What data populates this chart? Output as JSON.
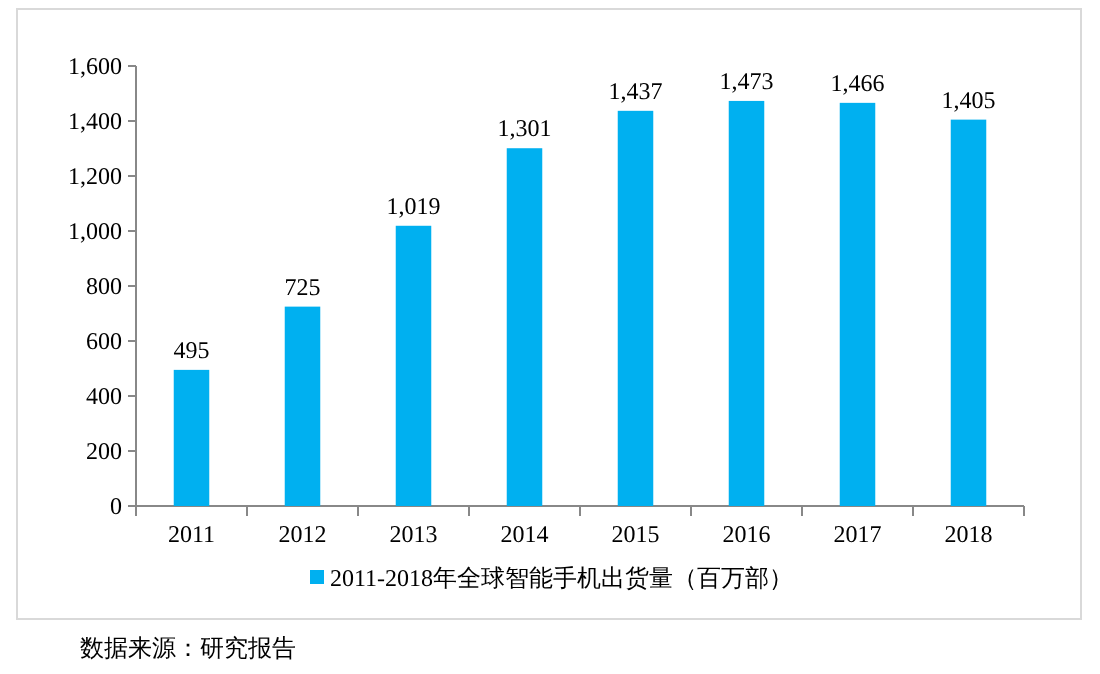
{
  "chart_data": {
    "type": "bar",
    "categories": [
      "2011",
      "2012",
      "2013",
      "2014",
      "2015",
      "2016",
      "2017",
      "2018"
    ],
    "series": [
      {
        "name": "2011-2018年全球智能手机出货量（百万部）",
        "color": "#00b0f0",
        "values": [
          495,
          725,
          1019,
          1301,
          1437,
          1473,
          1466,
          1405
        ]
      }
    ],
    "value_labels": [
      "495",
      "725",
      "1,019",
      "1,301",
      "1,437",
      "1,473",
      "1,466",
      "1,405"
    ],
    "ylim": [
      0,
      1600
    ],
    "yticks": [
      {
        "value": 0,
        "label": "0"
      },
      {
        "value": 200,
        "label": "200"
      },
      {
        "value": 400,
        "label": "400"
      },
      {
        "value": 600,
        "label": "600"
      },
      {
        "value": 800,
        "label": "800"
      },
      {
        "value": 1000,
        "label": "1,000"
      },
      {
        "value": 1200,
        "label": "1,200"
      },
      {
        "value": 1400,
        "label": "1,400"
      },
      {
        "value": 1600,
        "label": "1,600"
      }
    ],
    "grid": false,
    "legend": "bottom",
    "annotations": [
      "数据来源：研究报告"
    ]
  }
}
